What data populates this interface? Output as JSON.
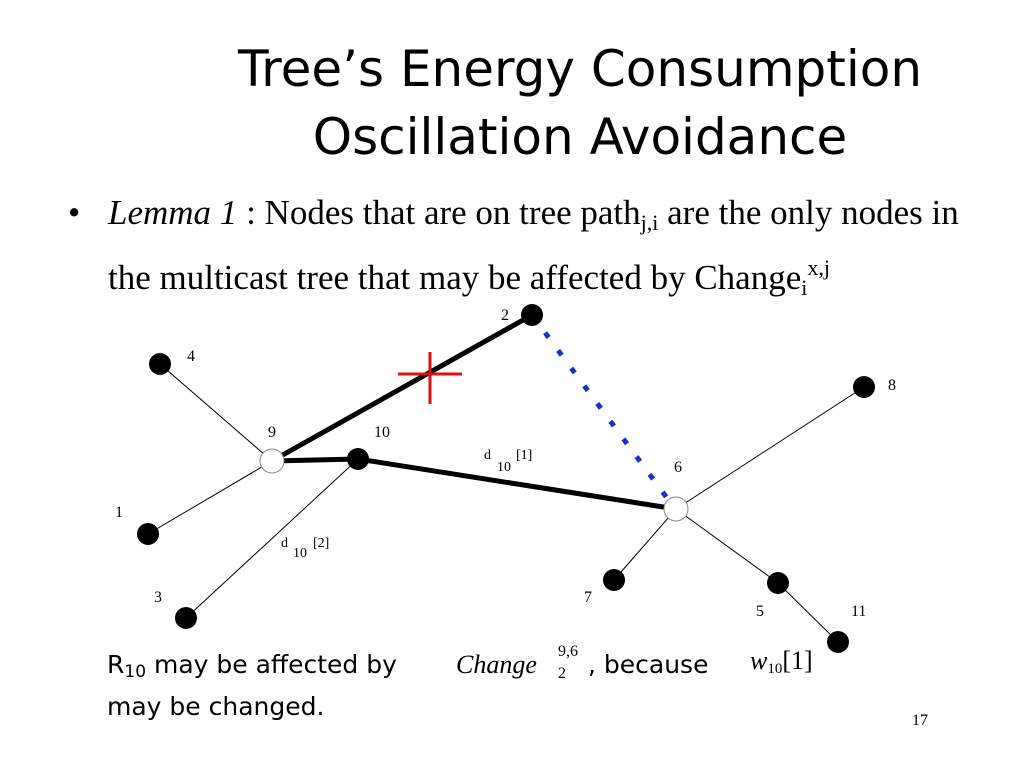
{
  "slide": {
    "title_line1": "Tree’s Energy Consumption",
    "title_line2": "Oscillation Avoidance",
    "bullet": {
      "symbol": "•",
      "lemma": "Lemma 1",
      "sep": " :  ",
      "text1": "Nodes that are on tree path",
      "path_sub": "j,i",
      "text2": " are the only nodes in the multicast tree that may be affected by Change",
      "change_sub": "i",
      "change_sup": "x,j"
    },
    "caption": {
      "r": "R",
      "r_sub": "10",
      "line1_a": " may be affected by ",
      "change_word": "Change",
      "change_sup": "9,6",
      "change_sub": "2",
      "because": ", because",
      "w": "w",
      "w_sub": "10",
      "w_idx": "[1]",
      "line2": "may be changed."
    },
    "page_number": "17"
  },
  "diagram": {
    "nodes": [
      {
        "id": "2",
        "label": "2",
        "type": "filled"
      },
      {
        "id": "4",
        "label": "4",
        "type": "filled"
      },
      {
        "id": "9",
        "label": "9",
        "type": "hollow"
      },
      {
        "id": "10",
        "label": "10",
        "type": "filled"
      },
      {
        "id": "1",
        "label": "1",
        "type": "filled"
      },
      {
        "id": "3",
        "label": "3",
        "type": "filled"
      },
      {
        "id": "6",
        "label": "6",
        "type": "hollow"
      },
      {
        "id": "8",
        "label": "8",
        "type": "filled"
      },
      {
        "id": "7",
        "label": "7",
        "type": "filled"
      },
      {
        "id": "5",
        "label": "5",
        "type": "filled"
      },
      {
        "id": "11",
        "label": "11",
        "type": "filled"
      }
    ],
    "edge_labels": {
      "d10_1": {
        "d": "d",
        "sub": "10",
        "idx": "[1]"
      },
      "d10_2": {
        "d": "d",
        "sub": "10",
        "idx": "[2]"
      }
    },
    "colors": {
      "node": "#000000",
      "dotted_link": "#1a2fd0",
      "cross": "#e01010"
    }
  }
}
